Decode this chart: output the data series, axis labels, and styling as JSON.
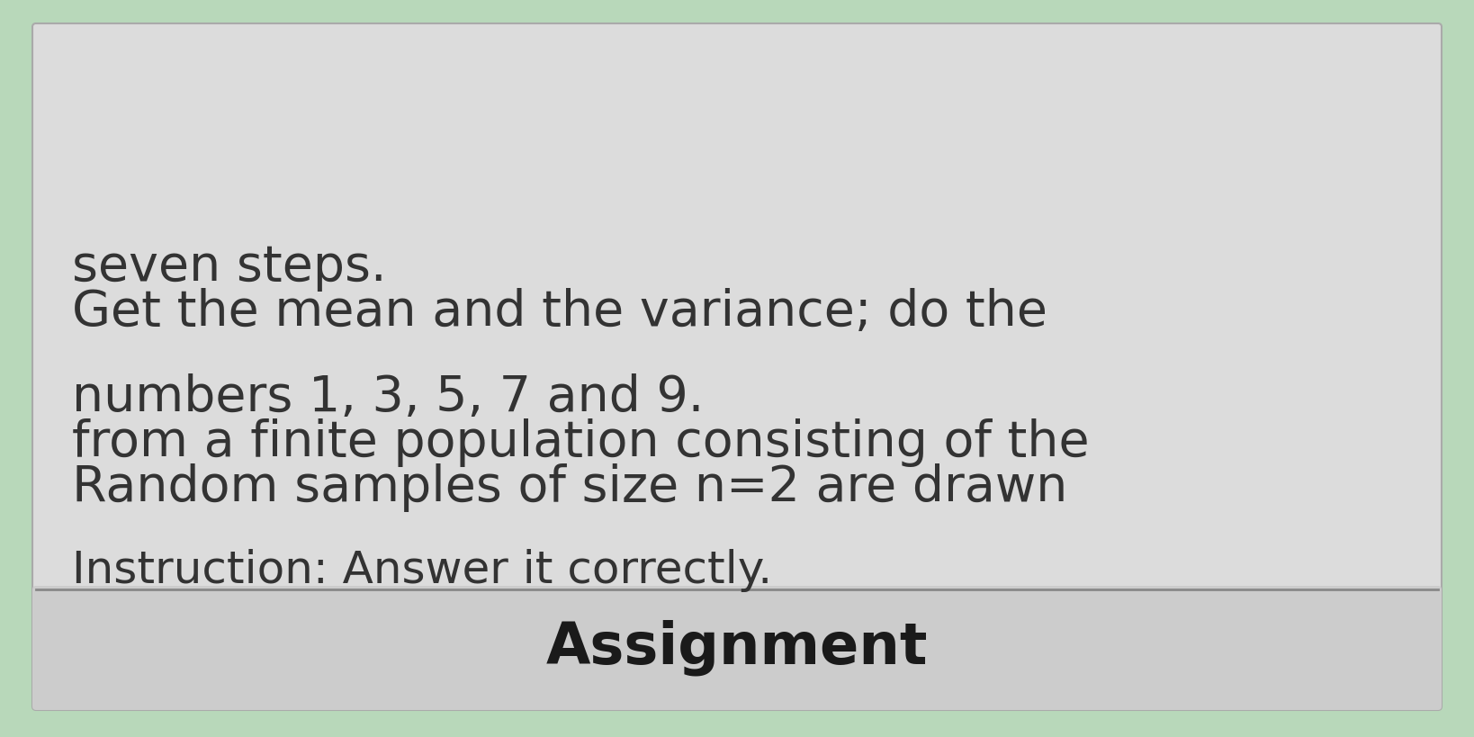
{
  "title": "Assignment",
  "instruction_line": "Instruction: Answer it correctly.",
  "body_line1": "Random samples of size n=2 are drawn",
  "body_line2": "from a finite population consisting of the",
  "body_line3": "numbers 1, 3, 5, 7 and 9.",
  "body_line4": "Get the mean and the variance; do the",
  "body_line5": "seven steps.",
  "bg_outer": "#b8d8ba",
  "bg_card": "#dcdcdc",
  "title_bg": "#cccccc",
  "divider_color": "#888888",
  "border_color": "#aaaaaa",
  "title_color": "#1a1a1a",
  "text_color": "#333333",
  "title_fontsize": 46,
  "instruction_fontsize": 36,
  "body_fontsize": 40
}
